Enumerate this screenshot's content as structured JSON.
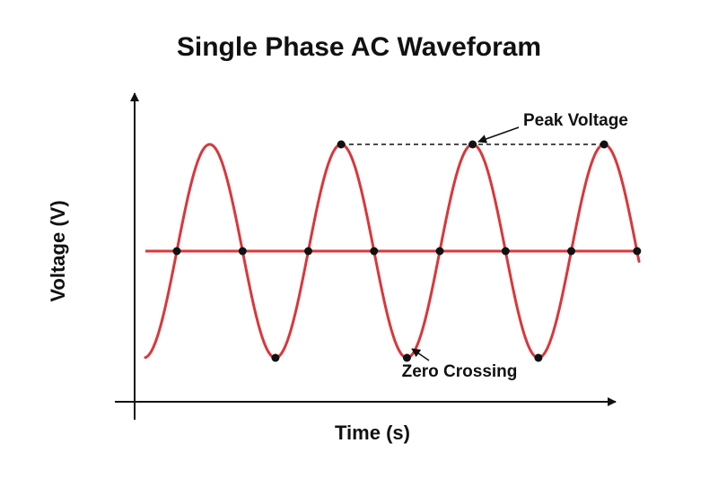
{
  "title": "Single Phase AC Waveforam",
  "axes": {
    "x_label": "Time (s)",
    "y_label": "Voltage (V)"
  },
  "annotations": {
    "peak_label": "Peak Voltage",
    "trough_label": "Zero Crossing"
  },
  "colors": {
    "wave": "#d9373b",
    "axis": "#111111",
    "marker": "#111111",
    "guide": "#111111"
  },
  "waveform": {
    "cycles_shown": 3.75,
    "peaks_marked": 4,
    "troughs_marked": 3,
    "zero_crossings_marked": 8
  }
}
